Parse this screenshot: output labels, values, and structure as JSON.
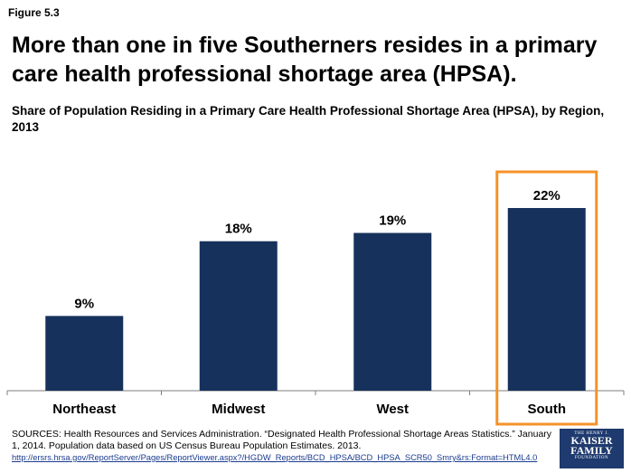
{
  "figure_label": "Figure 5.3",
  "headline": "More than one in five Southerners resides in a primary care health professional shortage area (HPSA).",
  "colors": {
    "bar": "#16325c",
    "highlight": "#f4922a",
    "axis": "#7f7f7f"
  },
  "chart_data": {
    "type": "bar",
    "title": "Share of Population Residing in a Primary Care Health Professional Shortage Area (HPSA), by Region, 2013",
    "categories": [
      "Northeast",
      "Midwest",
      "West",
      "South"
    ],
    "values": [
      9,
      18,
      19,
      22
    ],
    "value_labels": [
      "9%",
      "18%",
      "19%",
      "22%"
    ],
    "ylim": [
      0,
      27
    ],
    "grid": false,
    "highlighted_category": "South"
  },
  "sources": {
    "text": "SOURCES: Health Resources and Services Administration. “Designated Health Professional Shortage Areas Statistics.” January 1, 2014. Population data based on US Census Bureau Population Estimates. 2013.",
    "link": "http://ersrs.hrsa.gov/ReportServer/Pages/ReportViewer.aspx?/HGDW_Reports/BCD_HPSA/BCD_HPSA_SCR50_Smry&rs:Format=HTML4.0"
  },
  "logo": {
    "line1": "THE HENRY J.",
    "line2": "KAISER",
    "line3": "FAMILY",
    "line4": "FOUNDATION"
  }
}
